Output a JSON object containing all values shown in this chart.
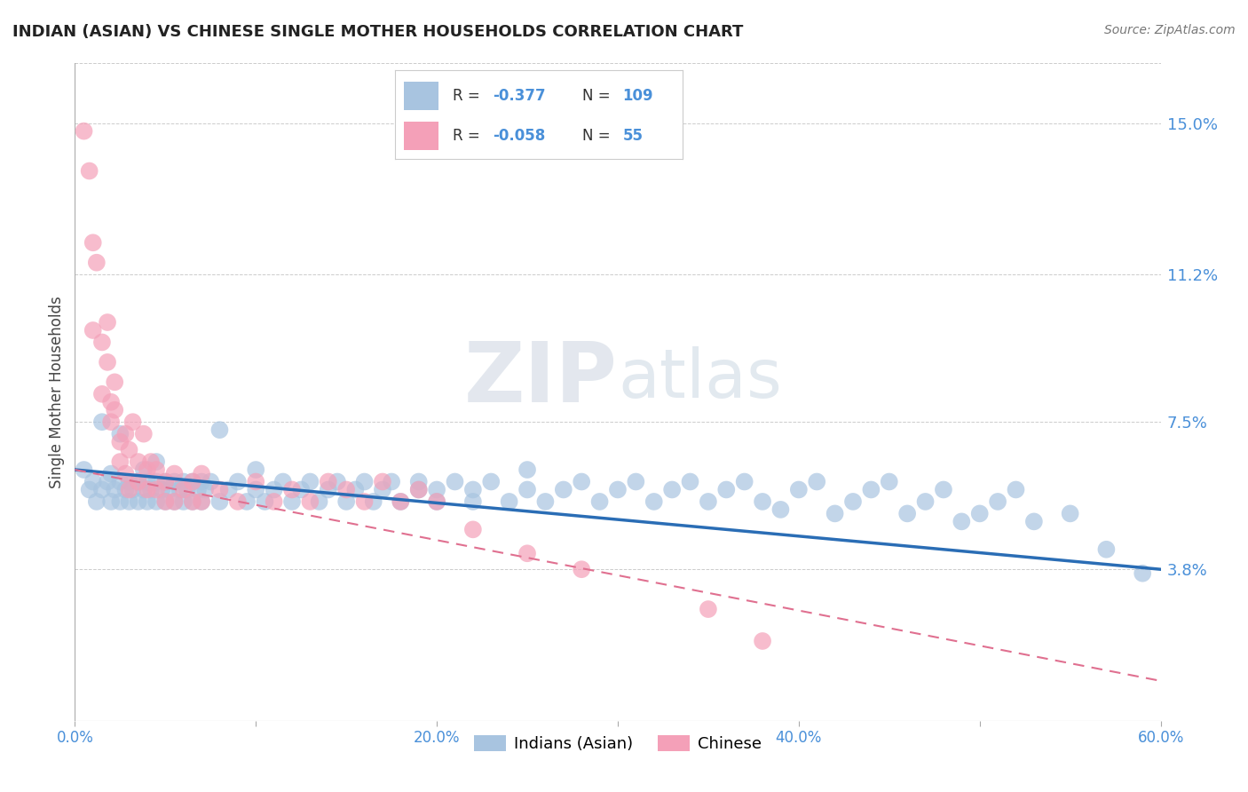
{
  "title": "INDIAN (ASIAN) VS CHINESE SINGLE MOTHER HOUSEHOLDS CORRELATION CHART",
  "source_text": "Source: ZipAtlas.com",
  "ylabel": "Single Mother Households",
  "xlim": [
    0.0,
    0.6
  ],
  "ylim": [
    0.0,
    0.165
  ],
  "yticks": [
    0.038,
    0.075,
    0.112,
    0.15
  ],
  "ytick_labels": [
    "3.8%",
    "7.5%",
    "11.2%",
    "15.0%"
  ],
  "xticks": [
    0.0,
    0.1,
    0.2,
    0.3,
    0.4,
    0.5,
    0.6
  ],
  "xtick_labels": [
    "0.0%",
    "",
    "20.0%",
    "",
    "40.0%",
    "",
    "60.0%"
  ],
  "blue_color": "#a8c4e0",
  "blue_line_color": "#2a6db5",
  "pink_color": "#f4a0b8",
  "pink_line_color": "#e07090",
  "legend_blue_label": "Indians (Asian)",
  "legend_pink_label": "Chinese",
  "R_blue": -0.377,
  "N_blue": 109,
  "R_pink": -0.058,
  "N_pink": 55,
  "grid_color": "#cccccc",
  "background_color": "#ffffff",
  "watermark_zip": "ZIP",
  "watermark_atlas": "atlas",
  "title_color": "#222222",
  "axis_label_color": "#444444",
  "tick_color": "#4a90d9",
  "blue_trendline_y0": 0.063,
  "blue_trendline_y1": 0.038,
  "pink_trendline_y0": 0.063,
  "pink_trendline_y1": 0.01,
  "blue_scatter_x": [
    0.005,
    0.008,
    0.01,
    0.012,
    0.015,
    0.015,
    0.018,
    0.02,
    0.02,
    0.022,
    0.025,
    0.025,
    0.025,
    0.028,
    0.03,
    0.03,
    0.032,
    0.035,
    0.035,
    0.038,
    0.038,
    0.04,
    0.04,
    0.042,
    0.045,
    0.045,
    0.045,
    0.048,
    0.05,
    0.05,
    0.052,
    0.055,
    0.055,
    0.058,
    0.06,
    0.06,
    0.062,
    0.065,
    0.065,
    0.068,
    0.07,
    0.07,
    0.072,
    0.075,
    0.08,
    0.08,
    0.085,
    0.09,
    0.095,
    0.1,
    0.1,
    0.105,
    0.11,
    0.115,
    0.12,
    0.125,
    0.13,
    0.135,
    0.14,
    0.145,
    0.15,
    0.155,
    0.16,
    0.165,
    0.17,
    0.175,
    0.18,
    0.19,
    0.19,
    0.2,
    0.2,
    0.21,
    0.22,
    0.22,
    0.23,
    0.24,
    0.25,
    0.25,
    0.26,
    0.27,
    0.28,
    0.29,
    0.3,
    0.31,
    0.32,
    0.33,
    0.34,
    0.35,
    0.36,
    0.37,
    0.38,
    0.39,
    0.4,
    0.41,
    0.42,
    0.43,
    0.44,
    0.45,
    0.46,
    0.47,
    0.48,
    0.49,
    0.5,
    0.51,
    0.52,
    0.53,
    0.55,
    0.57,
    0.59
  ],
  "blue_scatter_y": [
    0.063,
    0.058,
    0.06,
    0.055,
    0.058,
    0.075,
    0.06,
    0.055,
    0.062,
    0.058,
    0.06,
    0.055,
    0.072,
    0.058,
    0.06,
    0.055,
    0.058,
    0.06,
    0.055,
    0.063,
    0.058,
    0.055,
    0.06,
    0.058,
    0.06,
    0.055,
    0.065,
    0.058,
    0.055,
    0.06,
    0.058,
    0.055,
    0.06,
    0.058,
    0.055,
    0.06,
    0.058,
    0.06,
    0.055,
    0.058,
    0.06,
    0.055,
    0.058,
    0.06,
    0.073,
    0.055,
    0.058,
    0.06,
    0.055,
    0.058,
    0.063,
    0.055,
    0.058,
    0.06,
    0.055,
    0.058,
    0.06,
    0.055,
    0.058,
    0.06,
    0.055,
    0.058,
    0.06,
    0.055,
    0.058,
    0.06,
    0.055,
    0.058,
    0.06,
    0.055,
    0.058,
    0.06,
    0.055,
    0.058,
    0.06,
    0.055,
    0.058,
    0.063,
    0.055,
    0.058,
    0.06,
    0.055,
    0.058,
    0.06,
    0.055,
    0.058,
    0.06,
    0.055,
    0.058,
    0.06,
    0.055,
    0.053,
    0.058,
    0.06,
    0.052,
    0.055,
    0.058,
    0.06,
    0.052,
    0.055,
    0.058,
    0.05,
    0.052,
    0.055,
    0.058,
    0.05,
    0.052,
    0.043,
    0.037
  ],
  "pink_scatter_x": [
    0.005,
    0.008,
    0.01,
    0.01,
    0.012,
    0.015,
    0.015,
    0.018,
    0.018,
    0.02,
    0.02,
    0.022,
    0.022,
    0.025,
    0.025,
    0.028,
    0.028,
    0.03,
    0.03,
    0.032,
    0.035,
    0.035,
    0.038,
    0.04,
    0.04,
    0.042,
    0.045,
    0.045,
    0.05,
    0.05,
    0.055,
    0.055,
    0.06,
    0.065,
    0.065,
    0.07,
    0.07,
    0.08,
    0.09,
    0.1,
    0.11,
    0.12,
    0.13,
    0.14,
    0.15,
    0.16,
    0.17,
    0.18,
    0.19,
    0.2,
    0.22,
    0.25,
    0.28,
    0.35,
    0.38
  ],
  "pink_scatter_y": [
    0.148,
    0.138,
    0.12,
    0.098,
    0.115,
    0.095,
    0.082,
    0.1,
    0.09,
    0.08,
    0.075,
    0.085,
    0.078,
    0.07,
    0.065,
    0.072,
    0.062,
    0.068,
    0.058,
    0.075,
    0.065,
    0.06,
    0.072,
    0.063,
    0.058,
    0.065,
    0.058,
    0.063,
    0.06,
    0.055,
    0.062,
    0.055,
    0.058,
    0.06,
    0.055,
    0.062,
    0.055,
    0.058,
    0.055,
    0.06,
    0.055,
    0.058,
    0.055,
    0.06,
    0.058,
    0.055,
    0.06,
    0.055,
    0.058,
    0.055,
    0.048,
    0.042,
    0.038,
    0.028,
    0.02
  ]
}
